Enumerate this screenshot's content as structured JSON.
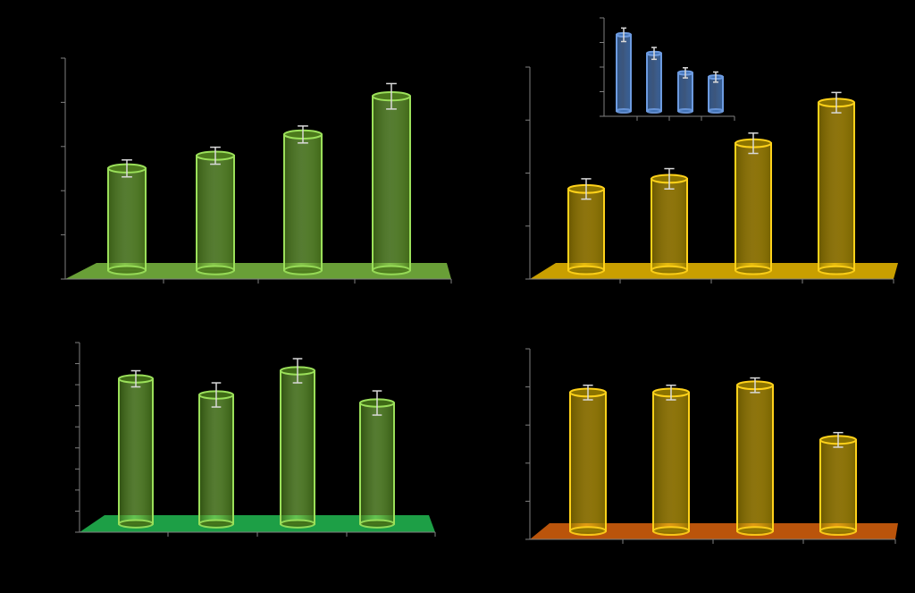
{
  "chart_data": [
    {
      "id": "top-left",
      "type": "bar",
      "style": "3d-cylinder",
      "title": "",
      "categories": [
        "",
        "",
        "",
        ""
      ],
      "values": [
        24,
        27,
        32,
        41
      ],
      "errors": [
        2,
        2,
        2,
        3
      ],
      "ylim": [
        0,
        50
      ],
      "grid": false,
      "colors": {
        "bar": "#4c7a1c",
        "bar_edge": "#9be05a",
        "floor": "#6fa83a",
        "axis": "#7f7f7f",
        "errorbar": "#d9d9d9"
      }
    },
    {
      "id": "top-right",
      "type": "bar",
      "style": "3d-cylinder",
      "title": "",
      "categories": [
        "",
        "",
        "",
        ""
      ],
      "values": [
        16,
        18,
        25,
        33
      ],
      "errors": [
        2,
        2,
        2,
        2
      ],
      "ylim": [
        0,
        40
      ],
      "grid": false,
      "colors": {
        "bar": "#8c7400",
        "bar_edge": "#ffd21a",
        "floor": "#d4a800",
        "axis": "#7f7f7f",
        "errorbar": "#d9d9d9"
      }
    },
    {
      "id": "inset",
      "type": "bar",
      "style": "3d-cylinder",
      "title": "",
      "categories": [
        "",
        "",
        "",
        ""
      ],
      "values": [
        90,
        68,
        45,
        40
      ],
      "errors": [
        8,
        7,
        6,
        6
      ],
      "ylim": [
        0,
        110
      ],
      "grid": false,
      "colors": {
        "bar": "#3c6db0",
        "bar_edge": "#6d9be0",
        "floor": "#3a3a3a",
        "axis": "#7f7f7f",
        "errorbar": "#d9d9d9"
      }
    },
    {
      "id": "bottom-left",
      "type": "bar",
      "style": "3d-cylinder",
      "title": "",
      "categories": [
        "",
        "",
        "",
        ""
      ],
      "values": [
        36,
        32,
        38,
        30
      ],
      "errors": [
        2,
        3,
        3,
        3
      ],
      "ylim": [
        0,
        45
      ],
      "grid": false,
      "colors": {
        "bar": "#3f6b16",
        "bar_edge": "#9be05a",
        "floor": "#1fa84a",
        "axis": "#7f7f7f",
        "errorbar": "#d9d9d9"
      }
    },
    {
      "id": "bottom-right",
      "type": "bar",
      "style": "3d-cylinder",
      "title": "",
      "categories": [
        "",
        "",
        "",
        ""
      ],
      "values": [
        38,
        38,
        40,
        25
      ],
      "errors": [
        2,
        2,
        2,
        2
      ],
      "ylim": [
        0,
        50
      ],
      "grid": false,
      "colors": {
        "bar": "#8c7400",
        "bar_edge": "#ffd21a",
        "floor": "#c4580c",
        "axis": "#7f7f7f",
        "errorbar": "#d9d9d9"
      }
    }
  ]
}
